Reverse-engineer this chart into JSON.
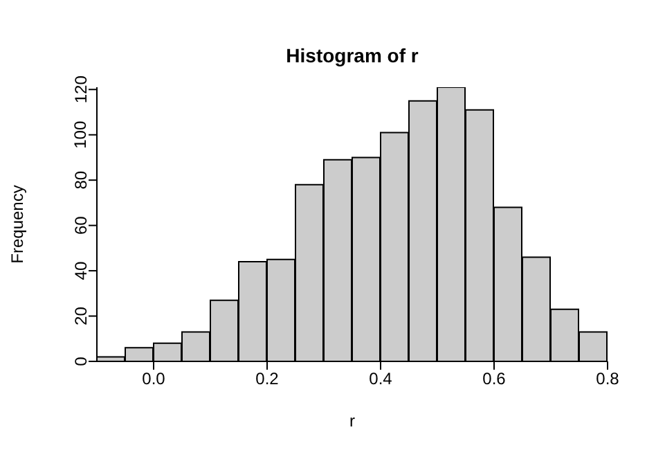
{
  "chart_data": {
    "type": "histogram",
    "title": "Histogram of r",
    "xlabel": "r",
    "ylabel": "Frequency",
    "bins": [
      -0.1,
      -0.05,
      0,
      0.05,
      0.1,
      0.15,
      0.2,
      0.25,
      0.3,
      0.35,
      0.4,
      0.45,
      0.5,
      0.55,
      0.6,
      0.65,
      0.7,
      0.75,
      0.8
    ],
    "values": [
      2,
      6,
      8,
      13,
      27,
      44,
      45,
      78,
      89,
      90,
      101,
      115,
      121,
      111,
      68,
      46,
      23,
      13
    ],
    "color": "#cccccc",
    "xlim": [
      -0.1,
      0.8
    ],
    "xticks": [
      {
        "value": 0,
        "label": "0.0"
      },
      0.2,
      0.4,
      0.6,
      0.8
    ],
    "ylim": [
      0,
      121
    ],
    "yticks": [
      0,
      20,
      40,
      60,
      80,
      100,
      120
    ],
    "grid": false,
    "legend": false
  }
}
